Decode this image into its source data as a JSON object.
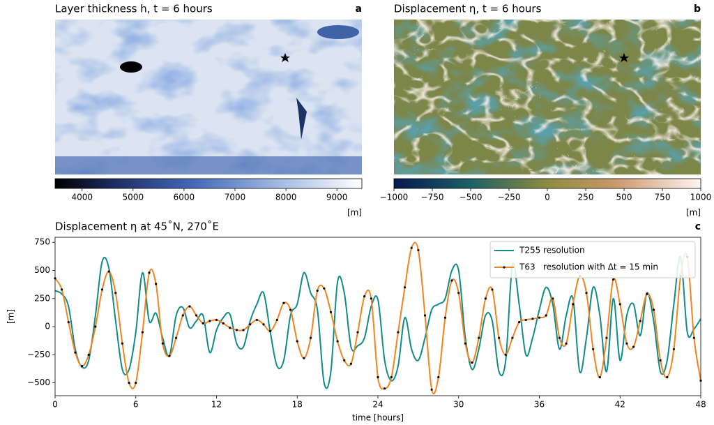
{
  "chart_data": [
    {
      "type": "map",
      "title": "Layer thickness h, t = 6 hours",
      "panel_label": "a",
      "colorbar": {
        "clim": [
          3470,
          9490
        ],
        "ticks": [
          4000,
          5000,
          6000,
          7000,
          8000,
          9000
        ],
        "label": "[m]"
      }
    },
    {
      "type": "map",
      "title": "Displacement η, t = 6 hours",
      "panel_label": "b",
      "colorbar": {
        "clim": [
          -1000,
          1000
        ],
        "ticks": [
          {
            "value": -1000,
            "label": "−1000"
          },
          {
            "value": -750,
            "label": "−750"
          },
          {
            "value": -500,
            "label": "−500"
          },
          {
            "value": -250,
            "label": "−250"
          },
          0,
          250,
          500,
          750,
          1000
        ],
        "label": "[m]"
      }
    },
    {
      "type": "line",
      "title": "Displacement η at 45˚N, 270˚E",
      "panel_label": "c",
      "x_label": "time [hours]",
      "y_label": "[m]",
      "xlim": [
        0,
        48
      ],
      "xticks": [
        0,
        6,
        12,
        18,
        24,
        30,
        36,
        42,
        48
      ],
      "ylim": [
        -614,
        795
      ],
      "yticks": [
        {
          "value": -500,
          "label": "−500"
        },
        {
          "value": -250,
          "label": "−250"
        },
        0,
        250,
        500,
        750
      ],
      "grid": false,
      "legend": "upper right",
      "x": [
        0,
        0.5,
        1,
        1.5,
        2,
        2.5,
        3,
        3.5,
        4,
        4.5,
        5,
        5.5,
        6,
        6.5,
        7,
        7.5,
        8,
        8.5,
        9,
        9.5,
        10,
        10.5,
        11,
        11.5,
        12,
        12.5,
        13,
        13.5,
        14,
        14.5,
        15,
        15.5,
        16,
        16.5,
        17,
        17.5,
        18,
        18.5,
        19,
        19.5,
        20,
        20.5,
        21,
        21.5,
        22,
        22.5,
        23,
        23.5,
        24,
        24.5,
        25,
        25.5,
        26,
        26.5,
        27,
        27.5,
        28,
        28.5,
        29,
        29.5,
        30,
        30.5,
        31,
        31.5,
        32,
        32.5,
        33,
        33.5,
        34,
        34.5,
        35,
        35.5,
        36,
        36.5,
        37,
        37.5,
        38,
        38.5,
        39,
        39.5,
        40,
        40.5,
        41,
        41.5,
        42,
        42.5,
        43,
        43.5,
        44,
        44.5,
        45,
        45.5,
        46,
        46.5,
        47,
        47.5,
        48
      ],
      "series": [
        {
          "name": "T255 resolution",
          "color": "#138a8a",
          "markers": false,
          "values": [
            320,
            290,
            180,
            -200,
            -360,
            -300,
            100,
            580,
            520,
            50,
            -380,
            -380,
            -50,
            480,
            50,
            120,
            -100,
            -260,
            100,
            170,
            -10,
            50,
            100,
            -230,
            -30,
            80,
            110,
            -150,
            -180,
            50,
            200,
            300,
            -50,
            -350,
            -300,
            100,
            200,
            480,
            300,
            150,
            -500,
            -400,
            400,
            300,
            -180,
            -170,
            -100,
            180,
            240,
            -300,
            -480,
            -350,
            80,
            -200,
            -300,
            -100,
            150,
            200,
            250,
            500,
            500,
            -100,
            -380,
            -200,
            100,
            50,
            -400,
            -300,
            550,
            200,
            -250,
            -100,
            150,
            350,
            200,
            -200,
            100,
            250,
            -400,
            -100,
            350,
            100,
            -400,
            250,
            -300,
            100,
            200,
            -80,
            300,
            50,
            -400,
            -300,
            200,
            620,
            -50,
            -20,
            70
          ]
        },
        {
          "name": "T63   resolution with Δt = 15 min",
          "color": "#f2841f",
          "markers": true,
          "values": [
            430,
            330,
            40,
            -230,
            -350,
            -250,
            0,
            330,
            490,
            300,
            -150,
            -500,
            -500,
            -50,
            480,
            380,
            -150,
            -260,
            -100,
            100,
            180,
            100,
            30,
            50,
            60,
            30,
            -10,
            -30,
            -30,
            20,
            60,
            20,
            -40,
            60,
            210,
            150,
            -130,
            -280,
            -100,
            320,
            340,
            130,
            -130,
            -300,
            -330,
            -50,
            270,
            250,
            -450,
            -550,
            -450,
            -50,
            350,
            700,
            680,
            100,
            -560,
            -450,
            80,
            410,
            300,
            -150,
            -320,
            -100,
            250,
            330,
            -100,
            -250,
            -100,
            40,
            60,
            70,
            80,
            100,
            250,
            -100,
            -150,
            200,
            450,
            300,
            -200,
            -450,
            -100,
            420,
            200,
            -150,
            -180,
            50,
            290,
            150,
            -300,
            -450,
            -200,
            450,
            620,
            -100,
            -480
          ]
        }
      ]
    }
  ]
}
